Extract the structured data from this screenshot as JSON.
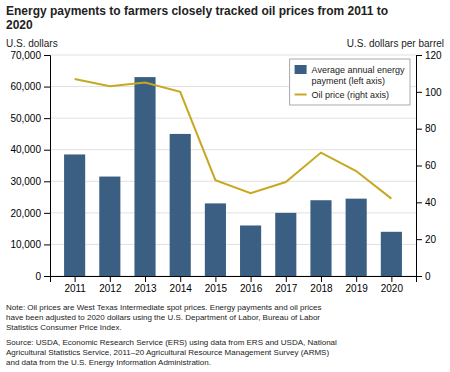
{
  "chart_data": {
    "type": "bar",
    "title": "Energy payments to farmers closely tracked oil prices from 2011 to\n2020",
    "y_label": "U.S. dollars",
    "y2_label": "U.S. dollars per barrel",
    "x": [
      2011,
      2012,
      2013,
      2014,
      2015,
      2016,
      2017,
      2018,
      2019,
      2020
    ],
    "xlim": [
      2010.3,
      2020.7
    ],
    "xticks": [
      2011,
      2012,
      2013,
      2014,
      2015,
      2016,
      2017,
      2018,
      2019,
      2020
    ],
    "ylim": [
      0,
      70000
    ],
    "yticks": [
      0,
      {
        "value": 10000,
        "label": "10,000"
      },
      {
        "value": 20000,
        "label": "20,000"
      },
      {
        "value": 30000,
        "label": "30,000"
      },
      {
        "value": 40000,
        "label": "40,000"
      },
      {
        "value": 50000,
        "label": "50,000"
      },
      {
        "value": 60000,
        "label": "60,000"
      },
      {
        "value": 70000,
        "label": "70,000"
      }
    ],
    "y2lim": [
      0,
      120
    ],
    "y2ticks": [
      0,
      20,
      40,
      60,
      80,
      100,
      120
    ],
    "grid": true,
    "legend": "upper right",
    "series": [
      {
        "name": "Average annual energy\npayment (left axis)",
        "type": "bar",
        "color": "#3a5f82",
        "values": [
          38500,
          31500,
          63000,
          45000,
          23000,
          16000,
          20000,
          24000,
          24500,
          14000
        ]
      },
      {
        "name": "Oil price (right axis)",
        "type": "line",
        "axis": "y2",
        "color": "#c8a820",
        "values": [
          107,
          103,
          105,
          100,
          52,
          45,
          51,
          67,
          57,
          42
        ]
      }
    ],
    "annotations": [
      "Note: Oil prices are West Texas Intermediate spot prices. Energy payments and oil prices\nhave been adjusted to 2020 dollars using the U.S. Department of Labor, Bureau of Labor\nStatistics Consumer Price Index.",
      "Source: USDA, Economic Research Service (ERS) using data from ERS and USDA, National\nAgricultural Statistics Service, 2011–20 Agricultural Resource Management Survey (ARMS)\nand data from the U.S. Energy Information Administration."
    ]
  }
}
